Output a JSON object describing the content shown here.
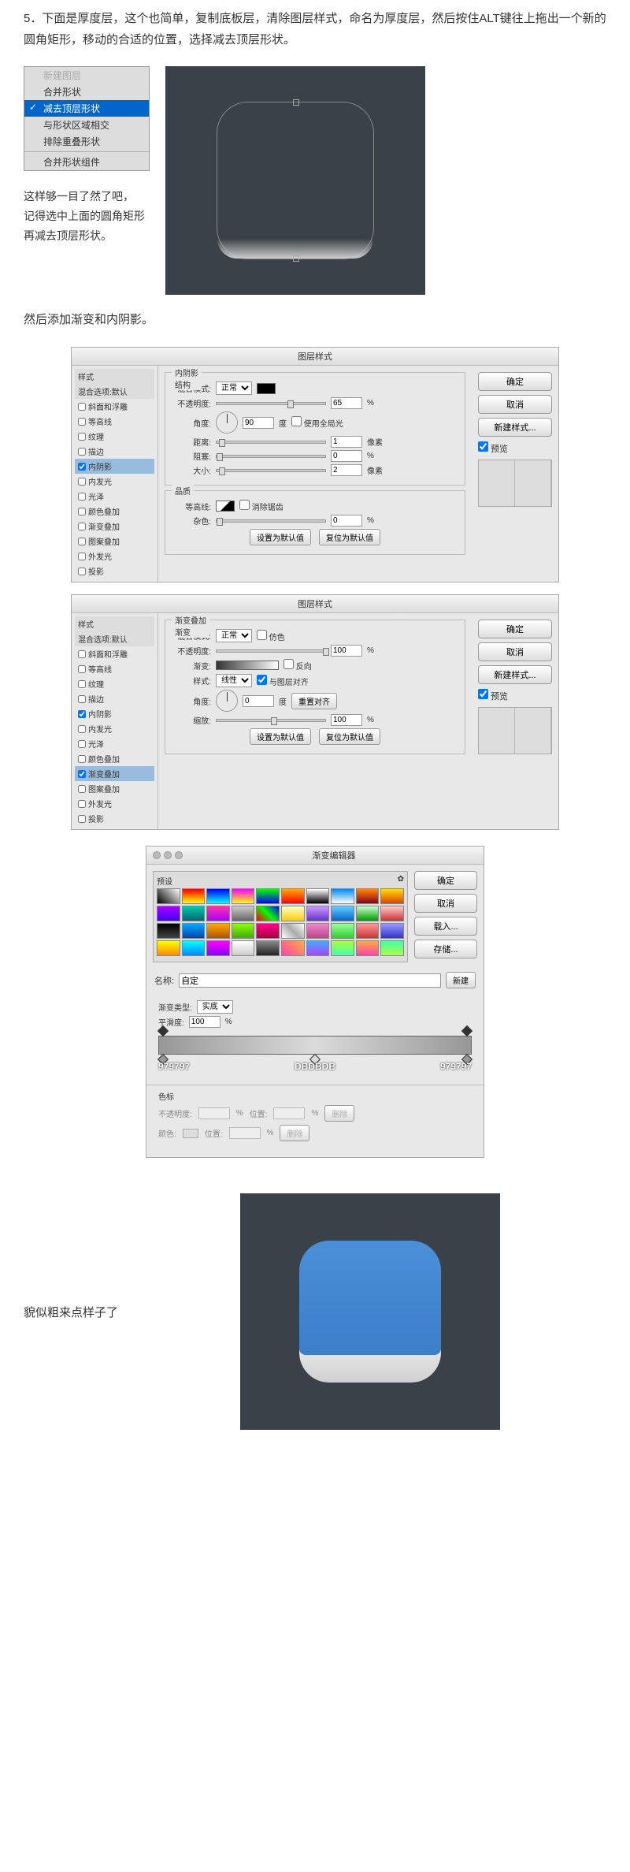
{
  "intro": "5．下面是厚度层，这个也简单，复制底板层，清除图层样式，命名为厚度层，然后按住ALT键往上拖出一个新的圆角矩形，移动的合适的位置，选择减去顶层形状。",
  "contextMenu": {
    "items": [
      "新建图层",
      "合并形状",
      "减去顶层形状",
      "与形状区域相交",
      "排除重叠形状",
      "合并形状组件"
    ],
    "selectedIndex": 2,
    "disabledIndex": 0
  },
  "note1_l1": "这样够一目了然了吧，",
  "note1_l2": "记得选中上面的圆角矩形",
  "note1_l3": "再减去顶层形状。",
  "text_after_preview1": "然后添加渐变和内阴影。",
  "dlg1": {
    "title": "图层样式",
    "sidebar_header": "样式",
    "sidebar_sub": "混合选项:默认",
    "styles": [
      "斜面和浮雕",
      "等高线",
      "纹理",
      "描边",
      "内阴影",
      "内发光",
      "光泽",
      "颜色叠加",
      "渐变叠加",
      "图案叠加",
      "外发光",
      "投影"
    ],
    "checked": [
      4
    ],
    "active": 4,
    "group1_title": "内阴影",
    "group1_sub": "结构",
    "blend_label": "混合模式:",
    "blend_value": "正常",
    "opacity_label": "不透明度:",
    "opacity_value": "65",
    "pct": "%",
    "angle_label": "角度:",
    "angle_value": "90",
    "deg": "度",
    "global_light": "使用全局光",
    "distance_label": "距离:",
    "distance_value": "1",
    "px": "像素",
    "choke_label": "阻塞:",
    "choke_value": "0",
    "size_label": "大小:",
    "size_value": "2",
    "group2_title": "品质",
    "contour_label": "等高线:",
    "antialias": "消除锯齿",
    "noise_label": "杂色:",
    "noise_value": "0",
    "btn_default": "设置为默认值",
    "btn_reset": "复位为默认值",
    "btn_ok": "确定",
    "btn_cancel": "取消",
    "btn_new": "新建样式...",
    "preview_label": "预览"
  },
  "dlg2": {
    "title": "图层样式",
    "checked": [
      4,
      8
    ],
    "active": 8,
    "group1_title": "渐变叠加",
    "group1_sub": "渐变",
    "blend_value": "正常",
    "dither": "仿色",
    "opacity_value": "100",
    "grad_label": "渐变:",
    "reverse": "反向",
    "style_label": "样式:",
    "style_value": "线性",
    "align": "与图层对齐",
    "angle_value": "0",
    "reset_align": "重置对齐",
    "scale_label": "缩放:",
    "scale_value": "100"
  },
  "gradEditor": {
    "title": "渐变编辑器",
    "presets_label": "预设",
    "btn_ok": "确定",
    "btn_cancel": "取消",
    "btn_load": "载入...",
    "btn_save": "存储...",
    "name_label": "名称:",
    "name_value": "自定",
    "btn_new": "新建",
    "type_label": "渐变类型:",
    "type_value": "实底",
    "smooth_label": "平滑度:",
    "smooth_value": "100",
    "stop1": "979797",
    "stop2": "DBDBDB",
    "stop3": "979797",
    "stops_label": "色标",
    "opacity_label": "不透明度:",
    "pos_label": "位置:",
    "color_label": "颜色:",
    "delete": "删除",
    "presetColors": [
      "linear-gradient(45deg,#000,#fff)",
      "linear-gradient(#f00,#ff0)",
      "linear-gradient(#00f,#0ff)",
      "linear-gradient(#f0f,#ff0)",
      "linear-gradient(#0f0,#00f)",
      "linear-gradient(#fa0,#f00)",
      "linear-gradient(#fff,#000)",
      "linear-gradient(#08f,#fff)",
      "linear-gradient(#f80,#802)",
      "linear-gradient(#fd0,#d40)",
      "linear-gradient(#a0f,#40f)",
      "linear-gradient(#0ca,#067)",
      "linear-gradient(#f3a,#a0f)",
      "linear-gradient(#ccc,#666)",
      "linear-gradient(45deg,#f00,#0f0,#00f)",
      "linear-gradient(#ffc,#fc0)",
      "linear-gradient(#c9f,#63c)",
      "linear-gradient(#6cf,#06c)",
      "linear-gradient(#cfc,#090)",
      "linear-gradient(#fcc,#c33)",
      "linear-gradient(#000,#444)",
      "linear-gradient(#0af,#04a)",
      "linear-gradient(#fa0,#a50)",
      "linear-gradient(#8f0,#4a0)",
      "linear-gradient(#f08,#a04)",
      "linear-gradient(45deg,#fff,#aaa,#fff)",
      "linear-gradient(#e8c,#b48)",
      "linear-gradient(#9f9,#3c3)",
      "linear-gradient(#f99,#c33)",
      "linear-gradient(#99f,#33c)",
      "linear-gradient(#ff0,#f80)",
      "linear-gradient(#0ff,#08f)",
      "linear-gradient(#f0f,#80f)",
      "linear-gradient(#fff,#ccc)",
      "linear-gradient(#888,#222)",
      "linear-gradient(45deg,#f4a,#fa4)",
      "linear-gradient(#4af,#a4f)",
      "linear-gradient(#af4,#4fa)",
      "linear-gradient(#fa4,#f4a)",
      "linear-gradient(#4fa,#af4)"
    ]
  },
  "final_text": "貌似粗来点样子了"
}
